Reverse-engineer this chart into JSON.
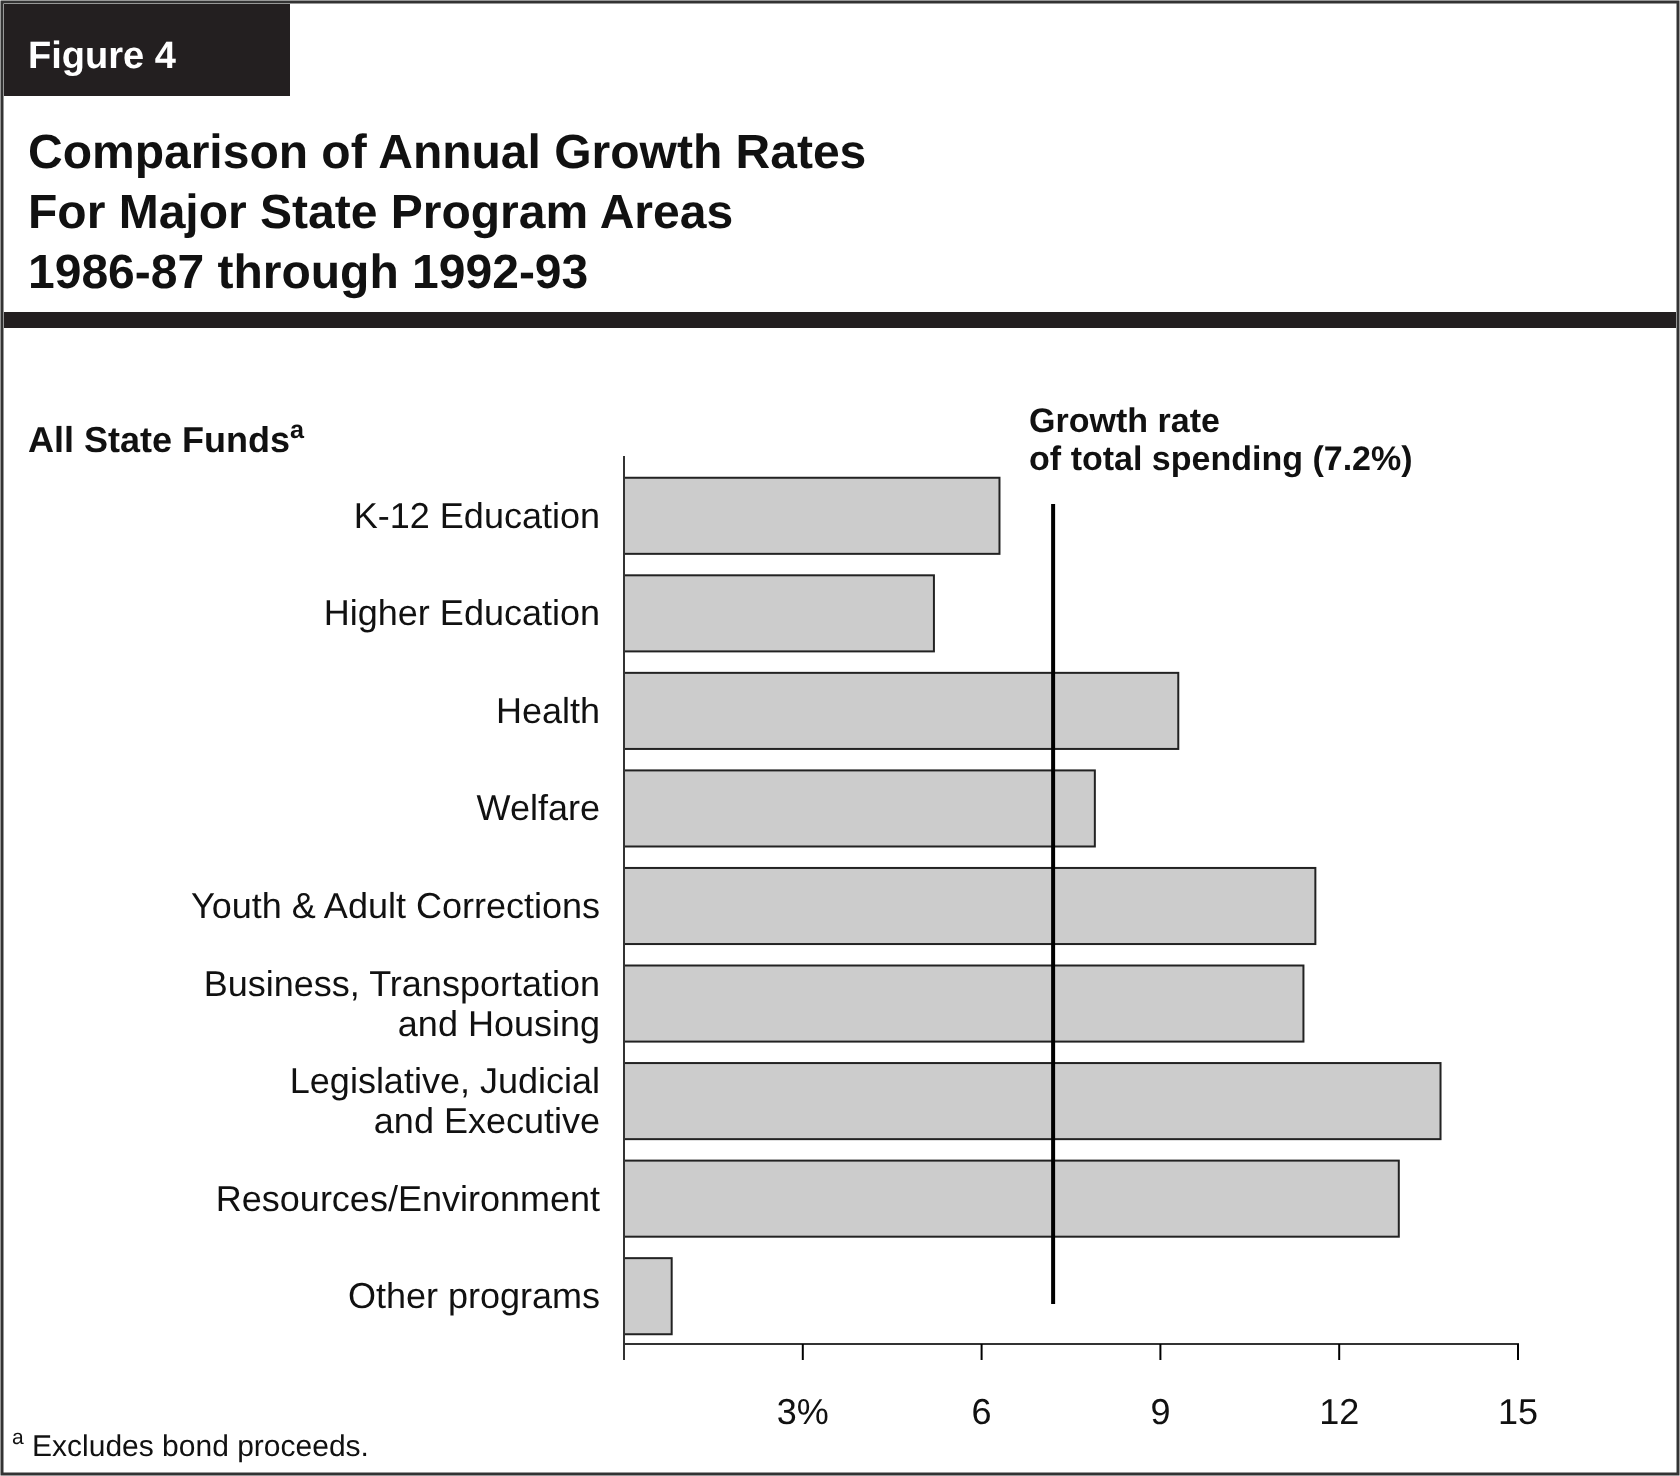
{
  "chart_data": {
    "type": "bar",
    "orientation": "horizontal",
    "title": "Comparison of Annual Growth Rates\nFor Major State Program Areas",
    "subtitle": "1986-87 through 1992-93",
    "annotations": [
      "Figure 4",
      "All State Funds$^{a}$",
      "$^{a}$ Excludes bond proceeds."
    ],
    "categories": [
      "K-12 Education",
      "Higher Education",
      "Health",
      "Welfare",
      "Youth & Adult Corrections",
      "Business, Transportation\nand Housing",
      "Legislative, Judicial\nand Executive",
      "Resources/Environment",
      "Other programs"
    ],
    "values": [
      6.3,
      5.2,
      9.3,
      7.9,
      11.6,
      11.4,
      13.7,
      13.0,
      0.8
    ],
    "color": "#cccccc",
    "xlim": [
      0,
      15
    ],
    "xticks": [
      {
        "value": 3,
        "label": "3%"
      },
      6,
      9,
      12,
      15
    ],
    "ref_lines": [
      {
        "axis": "x",
        "value": 7.2,
        "label": "Growth rate\nof total spending (7.2%)",
        "color": "#000000"
      }
    ],
    "grid": false
  }
}
